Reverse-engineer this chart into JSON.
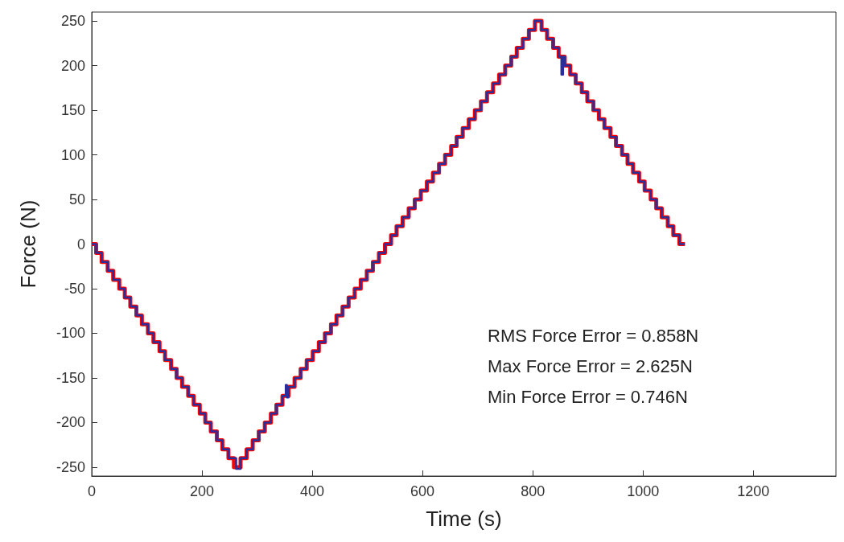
{
  "chart_data": {
    "type": "step",
    "xlabel": "Time (s)",
    "ylabel": "Force (N)",
    "xlim": [
      0,
      1350
    ],
    "xticks": [
      0,
      200,
      400,
      600,
      800,
      1000,
      1200
    ],
    "ylim": [
      -260,
      260
    ],
    "yticks": [
      -250,
      -200,
      -150,
      -100,
      -50,
      0,
      50,
      100,
      150,
      200,
      250
    ],
    "grid": false,
    "line_style": "solid",
    "marker": "none",
    "annotations": [
      "RMS Force Error = 0.858N",
      "Max Force Error = 2.625N",
      "Min Force Error = 0.746N"
    ],
    "series": [
      {
        "color": "#ff0000",
        "x": [
          0,
          8,
          18,
          29,
          39,
          50,
          60,
          70,
          81,
          91,
          102,
          112,
          123,
          133,
          144,
          154,
          164,
          175,
          185,
          196,
          206,
          216,
          227,
          237,
          248,
          258,
          270,
          281,
          292,
          303,
          314,
          325,
          335,
          346,
          357,
          368,
          379,
          390,
          401,
          412,
          423,
          434,
          444,
          455,
          466,
          477,
          488,
          499,
          510,
          521,
          532,
          543,
          553,
          564,
          575,
          586,
          597,
          608,
          619,
          630,
          641,
          652,
          662,
          673,
          684,
          695,
          706,
          717,
          728,
          739,
          750,
          761,
          771,
          782,
          793,
          804,
          816,
          826,
          837,
          847,
          858,
          868,
          878,
          889,
          899,
          910,
          920,
          930,
          941,
          951,
          962,
          972,
          982,
          993,
          1003,
          1014,
          1024,
          1034,
          1045,
          1055,
          1066,
          1076
        ],
        "values": [
          0,
          -10,
          -20,
          -30,
          -40,
          -50,
          -60,
          -70,
          -80,
          -90,
          -100,
          -110,
          -120,
          -130,
          -140,
          -150,
          -160,
          -170,
          -180,
          -190,
          -200,
          -210,
          -220,
          -230,
          -240,
          -250,
          -240,
          -230,
          -220,
          -210,
          -200,
          -190,
          -180,
          -170,
          -160,
          -150,
          -140,
          -130,
          -120,
          -110,
          -100,
          -90,
          -80,
          -70,
          -60,
          -50,
          -40,
          -30,
          -20,
          -10,
          0,
          10,
          20,
          30,
          40,
          50,
          60,
          70,
          80,
          90,
          100,
          110,
          120,
          130,
          140,
          150,
          160,
          170,
          180,
          190,
          200,
          210,
          220,
          230,
          240,
          250,
          240,
          230,
          220,
          210,
          200,
          190,
          180,
          170,
          160,
          150,
          140,
          130,
          120,
          110,
          100,
          90,
          80,
          70,
          60,
          50,
          40,
          30,
          20,
          10,
          0,
          0
        ]
      },
      {
        "color": "#2b2e9a",
        "x": [
          0,
          8,
          18,
          29,
          39,
          50,
          60,
          70,
          81,
          91,
          102,
          112,
          123,
          133,
          144,
          154,
          164,
          175,
          185,
          196,
          206,
          216,
          227,
          237,
          248,
          258,
          262,
          270,
          281,
          292,
          303,
          314,
          325,
          335,
          346,
          352,
          354,
          357,
          368,
          379,
          390,
          401,
          412,
          423,
          434,
          444,
          455,
          466,
          477,
          488,
          499,
          510,
          521,
          532,
          543,
          553,
          564,
          575,
          586,
          597,
          608,
          619,
          630,
          641,
          652,
          662,
          673,
          684,
          695,
          706,
          717,
          728,
          739,
          750,
          761,
          771,
          782,
          793,
          804,
          816,
          826,
          837,
          847,
          852,
          855,
          858,
          868,
          878,
          889,
          899,
          910,
          920,
          930,
          941,
          951,
          962,
          972,
          982,
          993,
          1003,
          1014,
          1024,
          1034,
          1045,
          1055,
          1066,
          1076
        ],
        "values": [
          0,
          -10,
          -20,
          -30,
          -40,
          -50,
          -60,
          -70,
          -80,
          -90,
          -100,
          -110,
          -120,
          -130,
          -140,
          -150,
          -160,
          -170,
          -180,
          -190,
          -200,
          -210,
          -220,
          -230,
          -240,
          -240,
          -252,
          -240,
          -230,
          -220,
          -210,
          -200,
          -190,
          -180,
          -170,
          -158,
          -172,
          -160,
          -150,
          -140,
          -130,
          -120,
          -110,
          -100,
          -90,
          -80,
          -70,
          -60,
          -50,
          -40,
          -30,
          -20,
          -10,
          0,
          10,
          20,
          30,
          40,
          50,
          60,
          70,
          80,
          90,
          100,
          110,
          120,
          130,
          140,
          150,
          160,
          170,
          180,
          190,
          200,
          210,
          220,
          230,
          240,
          250,
          240,
          230,
          220,
          210,
          190,
          210,
          200,
          190,
          180,
          170,
          160,
          150,
          140,
          130,
          120,
          110,
          100,
          90,
          80,
          70,
          60,
          50,
          40,
          30,
          20,
          10,
          0,
          0
        ]
      }
    ]
  }
}
